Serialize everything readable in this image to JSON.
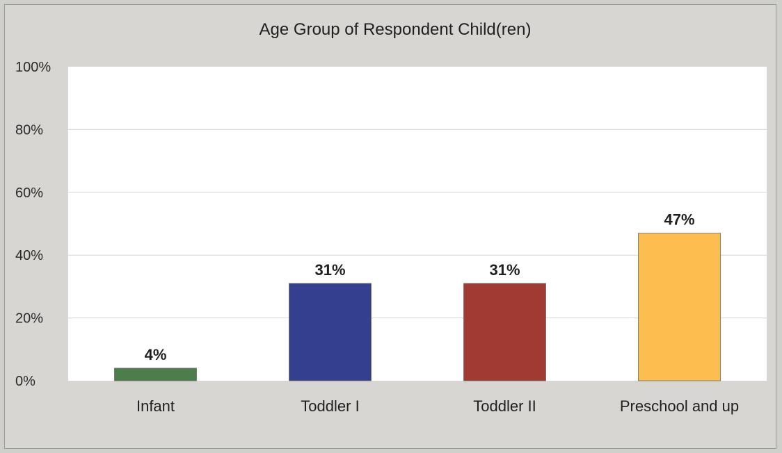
{
  "chart_data": {
    "type": "bar",
    "title": "Age Group of Respondent Child(ren)",
    "xlabel": "",
    "ylabel": "",
    "categories": [
      "Infant",
      "Toddler I",
      "Toddler II",
      "Preschool and up"
    ],
    "values": [
      4,
      31,
      31,
      47
    ],
    "data_labels": [
      "4%",
      "31%",
      "31%",
      "47%"
    ],
    "ylim": [
      0,
      100
    ],
    "yticks": [
      0,
      20,
      40,
      60,
      80,
      100
    ],
    "ytick_labels": [
      "0%",
      "20%",
      "40%",
      "60%",
      "80%",
      "100%"
    ],
    "grid": true,
    "legend": "none",
    "colors": [
      "#4e7d4c",
      "#343f8f",
      "#a23a34",
      "#fcbf4f"
    ]
  }
}
